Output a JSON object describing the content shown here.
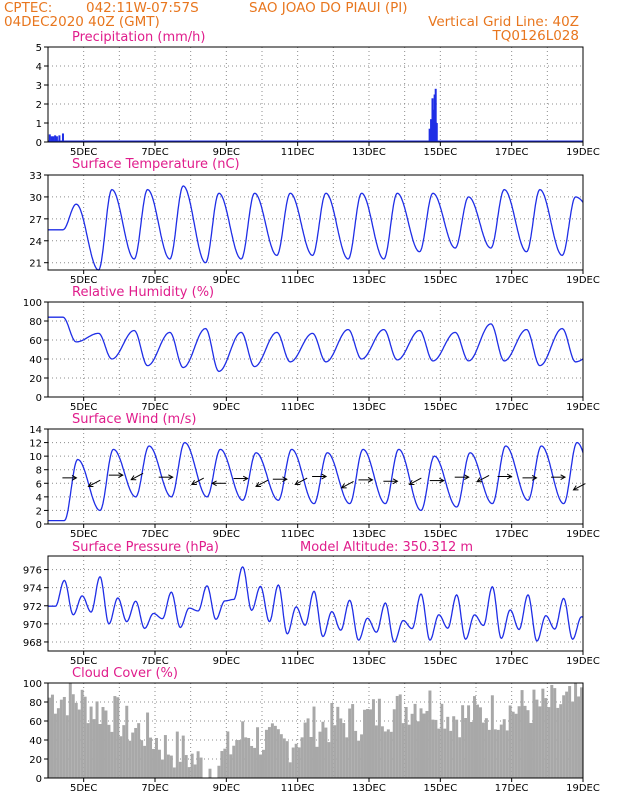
{
  "header": {
    "source": "CPTEC:",
    "coords": "042:11W-07:57S",
    "location": "SAO JOAO DO PIAUI (PI)",
    "run": "04DEC2020 40Z (GMT)",
    "grid_note": "Vertical Grid Line: 40Z",
    "model_code": "TQ0126L028"
  },
  "colors": {
    "header": "#e8761e",
    "title": "#e01d8c",
    "line": "#1f2ee6",
    "cloud": "#a8a8a8",
    "arrows": "#000000"
  },
  "chart_data": [
    {
      "type": "bar",
      "title": "Precipitation (mm/h)",
      "x_tick_labels": [
        "5DEC",
        "7DEC",
        "9DEC",
        "11DEC",
        "13DEC",
        "15DEC",
        "17DEC",
        "19DEC"
      ],
      "x_range_days": [
        4.0,
        19.0
      ],
      "ylim": [
        0,
        5
      ],
      "yticks": [
        0,
        1,
        2,
        3,
        4,
        5
      ],
      "grid": true,
      "bars": [
        {
          "day": 4.05,
          "value": 0.4
        },
        {
          "day": 4.1,
          "value": 0.3
        },
        {
          "day": 4.15,
          "value": 0.3
        },
        {
          "day": 4.2,
          "value": 0.35
        },
        {
          "day": 4.25,
          "value": 0.3
        },
        {
          "day": 4.32,
          "value": 0.35
        },
        {
          "day": 4.42,
          "value": 0.45
        },
        {
          "day": 14.7,
          "value": 0.7
        },
        {
          "day": 14.74,
          "value": 1.2
        },
        {
          "day": 14.78,
          "value": 2.3
        },
        {
          "day": 14.81,
          "value": 1.7
        },
        {
          "day": 14.84,
          "value": 2.5
        },
        {
          "day": 14.87,
          "value": 2.8
        },
        {
          "day": 14.9,
          "value": 1.0
        }
      ]
    },
    {
      "type": "line",
      "title": "Surface Temperature (nC)",
      "x_tick_labels": [
        "5DEC",
        "7DEC",
        "9DEC",
        "11DEC",
        "13DEC",
        "15DEC",
        "17DEC",
        "19DEC"
      ],
      "ylim": [
        20,
        33
      ],
      "yticks": [
        21,
        24,
        27,
        30,
        33
      ],
      "grid": true,
      "daily_cycle": {
        "min_hour": 10,
        "max_hour": 19
      },
      "days": [
        4,
        5,
        6,
        7,
        8,
        9,
        10,
        11,
        12,
        13,
        14,
        15,
        16,
        17,
        18,
        19
      ],
      "daily_min": [
        25.5,
        20.0,
        21.5,
        21.5,
        21.0,
        21.5,
        22.0,
        22.0,
        21.5,
        21.5,
        22.5,
        23.0,
        23.0,
        22.5,
        22.0,
        27.0
      ],
      "daily_max": [
        29.0,
        31.0,
        31.0,
        31.5,
        30.5,
        30.5,
        30.5,
        30.5,
        30.5,
        30.5,
        30.5,
        30.0,
        31.0,
        31.0,
        30.0,
        29.5
      ]
    },
    {
      "type": "line",
      "title": "Relative Humidity (%)",
      "x_tick_labels": [
        "5DEC",
        "7DEC",
        "9DEC",
        "11DEC",
        "13DEC",
        "15DEC",
        "17DEC",
        "19DEC"
      ],
      "ylim": [
        0,
        100
      ],
      "yticks": [
        0,
        20,
        40,
        60,
        80,
        100
      ],
      "grid": true,
      "daily_cycle": {
        "min_hour": 19,
        "max_hour": 10
      },
      "days": [
        4,
        5,
        6,
        7,
        8,
        9,
        10,
        11,
        12,
        13,
        14,
        15,
        16,
        17,
        18,
        19
      ],
      "daily_min": [
        58,
        40,
        33,
        31,
        27,
        32,
        37,
        37,
        40,
        39,
        38,
        38,
        38,
        33,
        37,
        46
      ],
      "daily_max": [
        84,
        67,
        70,
        68,
        72,
        68,
        68,
        67,
        71,
        71,
        70,
        68,
        77,
        71,
        72,
        50
      ]
    },
    {
      "type": "line",
      "title": "Surface Wind (m/s)",
      "x_tick_labels": [
        "5DEC",
        "7DEC",
        "9DEC",
        "11DEC",
        "13DEC",
        "15DEC",
        "17DEC",
        "19DEC"
      ],
      "ylim": [
        0,
        14
      ],
      "yticks": [
        0,
        2,
        4,
        6,
        8,
        10,
        12,
        14
      ],
      "grid": true,
      "daily_cycle": {
        "min_hour": 11,
        "max_hour": 20
      },
      "days": [
        4,
        5,
        6,
        7,
        8,
        9,
        10,
        11,
        12,
        13,
        14,
        15,
        16,
        17,
        18,
        19
      ],
      "daily_min": [
        0.5,
        2.0,
        4.0,
        4.0,
        4.0,
        3.5,
        3.5,
        3.0,
        3.0,
        3.0,
        2.0,
        2.5,
        3.0,
        3.5,
        3.0,
        3.0
      ],
      "daily_max": [
        9.5,
        11.0,
        11.5,
        12.0,
        11.0,
        10.5,
        11.0,
        10.5,
        11.0,
        11.0,
        10.0,
        10.5,
        11.5,
        11.5,
        12.0,
        8.0
      ],
      "arrows": [
        {
          "day": 4.6,
          "level": 6.8,
          "dir": "E"
        },
        {
          "day": 5.3,
          "level": 6.0,
          "dir": "SW"
        },
        {
          "day": 5.9,
          "level": 7.2,
          "dir": "E"
        },
        {
          "day": 6.5,
          "level": 7.0,
          "dir": "SW"
        },
        {
          "day": 7.3,
          "level": 6.9,
          "dir": "E"
        },
        {
          "day": 8.2,
          "level": 6.3,
          "dir": "SW"
        },
        {
          "day": 8.8,
          "level": 6.0,
          "dir": "W"
        },
        {
          "day": 9.4,
          "level": 6.7,
          "dir": "E"
        },
        {
          "day": 10.0,
          "level": 6.0,
          "dir": "SW"
        },
        {
          "day": 10.5,
          "level": 6.6,
          "dir": "E"
        },
        {
          "day": 11.1,
          "level": 6.3,
          "dir": "SW"
        },
        {
          "day": 11.6,
          "level": 7.0,
          "dir": "E"
        },
        {
          "day": 12.4,
          "level": 5.8,
          "dir": "SW"
        },
        {
          "day": 12.9,
          "level": 6.5,
          "dir": "E"
        },
        {
          "day": 13.6,
          "level": 6.3,
          "dir": "E"
        },
        {
          "day": 14.3,
          "level": 6.3,
          "dir": "SW"
        },
        {
          "day": 14.9,
          "level": 6.4,
          "dir": "E"
        },
        {
          "day": 15.6,
          "level": 6.9,
          "dir": "E"
        },
        {
          "day": 16.2,
          "level": 6.7,
          "dir": "SW"
        },
        {
          "day": 16.8,
          "level": 7.0,
          "dir": "E"
        },
        {
          "day": 17.5,
          "level": 6.8,
          "dir": "E"
        },
        {
          "day": 18.3,
          "level": 6.9,
          "dir": "E"
        },
        {
          "day": 18.9,
          "level": 5.5,
          "dir": "SW"
        }
      ]
    },
    {
      "type": "line",
      "title": "Surface Pressure (hPa)",
      "subtitle": "Model Altitude: 350.312 m",
      "x_tick_labels": [
        "5DEC",
        "7DEC",
        "9DEC",
        "11DEC",
        "13DEC",
        "15DEC",
        "17DEC",
        "19DEC"
      ],
      "ylim": [
        967,
        977.5
      ],
      "yticks": [
        968,
        970,
        972,
        974,
        976
      ],
      "grid": true,
      "semidiurnal": {
        "max_hours": [
          11,
          23
        ],
        "min_hours": [
          5,
          17
        ]
      },
      "days": [
        4,
        5,
        6,
        7,
        8,
        9,
        10,
        11,
        12,
        13,
        14,
        15,
        16,
        17,
        18,
        19
      ],
      "daily_max": [
        974.8,
        975.2,
        972.5,
        973.5,
        974.2,
        976.3,
        974.3,
        973.6,
        972.6,
        972.3,
        973.3,
        973.2,
        974.1,
        973.2,
        972.8,
        971.0
      ],
      "daily_min": [
        971.0,
        970.0,
        969.5,
        969.6,
        970.5,
        971.5,
        968.9,
        968.6,
        968.2,
        968.0,
        968.2,
        968.3,
        968.4,
        968.1,
        968.3,
        969.8
      ]
    },
    {
      "type": "bar",
      "title": "Cloud Cover (%)",
      "x_tick_labels": [
        "5DEC",
        "7DEC",
        "9DEC",
        "11DEC",
        "13DEC",
        "15DEC",
        "17DEC",
        "19DEC"
      ],
      "ylim": [
        0,
        100
      ],
      "yticks": [
        0,
        20,
        40,
        60,
        80,
        100
      ],
      "grid": true,
      "days": [
        4,
        5,
        6,
        7,
        8,
        9,
        10,
        11,
        12,
        13,
        14,
        15,
        16,
        17,
        18,
        19
      ],
      "daily_level": [
        85,
        72,
        50,
        30,
        12,
        45,
        35,
        55,
        60,
        70,
        80,
        65,
        70,
        75,
        78,
        85
      ]
    }
  ]
}
